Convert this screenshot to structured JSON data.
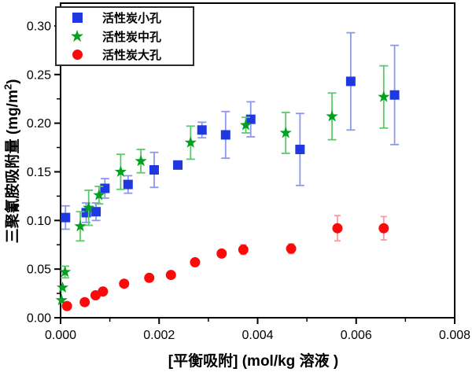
{
  "figure": {
    "background": "#ffffff",
    "text_color": "#000000",
    "axis_color": "#000000"
  },
  "chart_data": {
    "type": "scatter",
    "title": "",
    "xlabel": "[平衡吸附] (mol/kg 溶液 )",
    "ylabel": "三聚氰胺吸附量 (mg/m²)",
    "ylabel_main": "三聚氰胺吸附量 (mg/m",
    "ylabel_sup": "2",
    "ylabel_end": ")",
    "xlim": [
      0,
      0.008
    ],
    "ylim": [
      0,
      0.3234
    ],
    "grid": false,
    "legend_position": "top-left-inside",
    "x_ticks": {
      "values": [
        0,
        0.002,
        0.004,
        0.006,
        0.008
      ],
      "labels": [
        "0.000",
        "0.002",
        "0.004",
        "0.006",
        "0.008"
      ],
      "minor": [
        0.001,
        0.003,
        0.005,
        0.007
      ]
    },
    "y_ticks": {
      "values": [
        0,
        0.05,
        0.1,
        0.15,
        0.2,
        0.25,
        0.3
      ],
      "labels": [
        "0.00",
        "0.05",
        "0.10",
        "0.15",
        "0.20",
        "0.25",
        "0.30"
      ],
      "minor": [
        0.025,
        0.075,
        0.125,
        0.175,
        0.225,
        0.275
      ]
    },
    "point_format": "[x, y, y_error]",
    "series": [
      {
        "name": "活性炭小孔",
        "marker": "square",
        "color": "#2038e0",
        "error_color": "#8a97f2",
        "points": [
          [
            0.0001,
            0.103,
            0.012
          ],
          [
            0.00052,
            0.108,
            0.01
          ],
          [
            0.00072,
            0.109,
            0.009
          ],
          [
            0.0009,
            0.133,
            0.01
          ],
          [
            0.00137,
            0.137,
            0.009
          ],
          [
            0.0019,
            0.152,
            0.018
          ],
          [
            0.00238,
            0.157,
            0.004
          ],
          [
            0.00287,
            0.193,
            0.008
          ],
          [
            0.00335,
            0.188,
            0.024
          ],
          [
            0.00386,
            0.204,
            0.018
          ],
          [
            0.00486,
            0.173,
            0.037
          ],
          [
            0.00589,
            0.243,
            0.05
          ],
          [
            0.00678,
            0.229,
            0.051
          ]
        ]
      },
      {
        "name": "活性炭中孔",
        "marker": "star",
        "color": "#00a21e",
        "error_color": "#5bc96b",
        "points": [
          [
            2e-05,
            0.018,
            0
          ],
          [
            4e-05,
            0.031,
            0
          ],
          [
            9e-05,
            0.047,
            0.006
          ],
          [
            0.0004,
            0.094,
            0.015
          ],
          [
            0.00057,
            0.113,
            0.018
          ],
          [
            0.00078,
            0.126,
            0.009
          ],
          [
            0.00122,
            0.15,
            0.018
          ],
          [
            0.00163,
            0.161,
            0.012
          ],
          [
            0.00264,
            0.18,
            0.017
          ],
          [
            0.00376,
            0.198,
            0.008
          ],
          [
            0.00457,
            0.19,
            0.021
          ],
          [
            0.00551,
            0.207,
            0.024
          ],
          [
            0.00656,
            0.227,
            0.032
          ]
        ]
      },
      {
        "name": "活性炭大孔",
        "marker": "circle",
        "color": "#fa0a0a",
        "error_color": "#f89aa0",
        "points": [
          [
            0.00013,
            0.012,
            0
          ],
          [
            0.00049,
            0.016,
            0
          ],
          [
            0.00071,
            0.023,
            0
          ],
          [
            0.00086,
            0.027,
            0
          ],
          [
            0.00129,
            0.035,
            0
          ],
          [
            0.0018,
            0.041,
            0
          ],
          [
            0.00224,
            0.044,
            0
          ],
          [
            0.00273,
            0.057,
            0
          ],
          [
            0.00327,
            0.066,
            0
          ],
          [
            0.00371,
            0.07,
            0.005
          ],
          [
            0.00468,
            0.071,
            0.005
          ],
          [
            0.00562,
            0.092,
            0.013
          ],
          [
            0.00656,
            0.092,
            0.012
          ]
        ]
      }
    ]
  }
}
